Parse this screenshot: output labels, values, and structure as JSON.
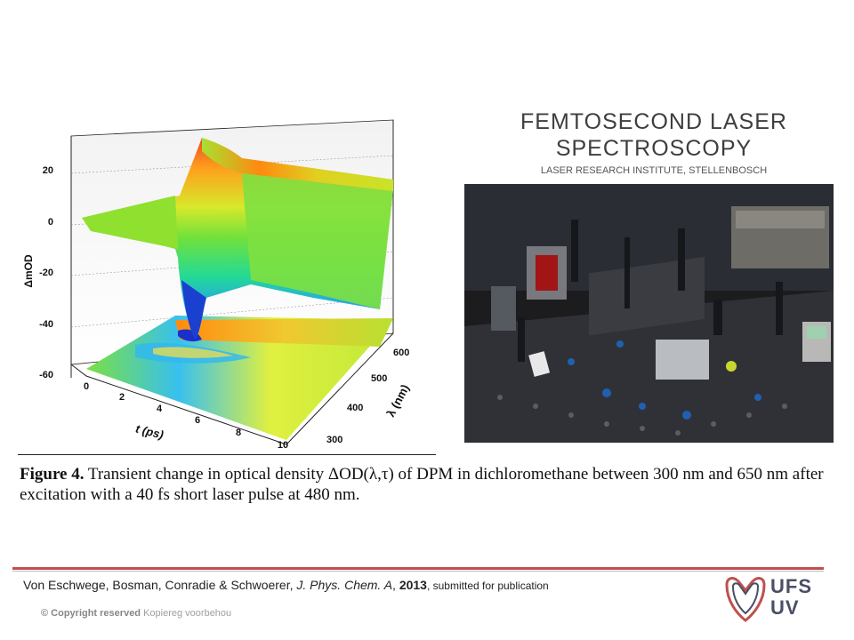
{
  "header": {
    "title": "FEMTOSECOND LASER SPECTROSCOPY",
    "subtitle": "LASER RESEARCH INSTITUTE, STELLENBOSCH"
  },
  "figure": {
    "caption_label": "Figure 4.",
    "caption_text": " Transient change in optical density ΔOD(λ,τ) of DPM in dichloromethane between 300 nm and 650 nm after excitation with a 40 fs short laser pulse at 480 nm."
  },
  "chart_data": {
    "type": "surface",
    "zlabel": "ΔmOD",
    "xlabel": "t (ps)",
    "ylabel": "λ (nm)",
    "z_ticks": [
      "20",
      "0",
      "-20",
      "-40",
      "-60"
    ],
    "x_ticks": [
      "0",
      "2",
      "4",
      "6",
      "8",
      "10"
    ],
    "y_ticks": [
      "300",
      "400",
      "500",
      "600"
    ],
    "zlim": [
      -60,
      25
    ],
    "xlim": [
      0,
      10
    ],
    "ylim": [
      300,
      650
    ],
    "min_value": {
      "t_ps": 0.4,
      "lambda_nm": 480,
      "z": -40
    },
    "max_value": {
      "t_ps": 0.6,
      "lambda_nm": 640,
      "z": 22
    }
  },
  "footer": {
    "authors": "Von Eschwege, Bosman, Conradie & Schwoerer, ",
    "journal": "J. Phys. Chem. A",
    "sep": ", ",
    "year": "2013",
    "status": ",  submitted for publication",
    "copyright_bold": "© Copyright reserved",
    "copyright_rest": " Kopiereg voorbehou",
    "logo_line1": "UFS",
    "logo_line2": "UV"
  },
  "colors": {
    "accent_line": "#c0504d",
    "logo": "#c0504d",
    "logo_text": "#4b4f66"
  }
}
